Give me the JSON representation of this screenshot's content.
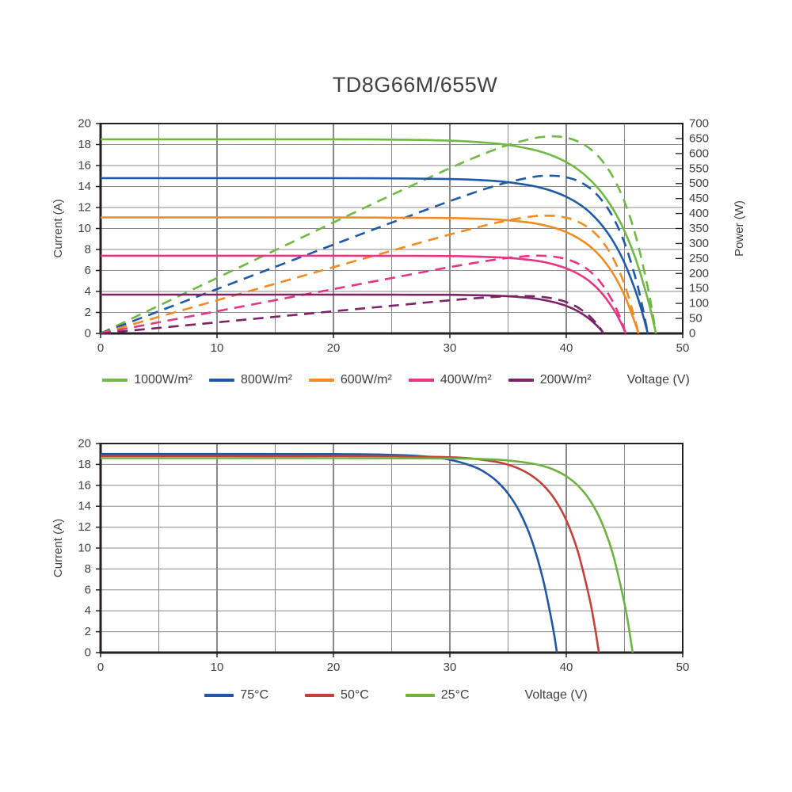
{
  "page": {
    "title": "TD8G66M/655W",
    "background": "#ffffff",
    "text_color": "#3f4042",
    "axis_color": "#231f20",
    "grid_minor_color": "#8a8a8a",
    "grid_major_color": "#4a4a4a"
  },
  "chart_data": [
    {
      "type": "line",
      "id": "irradiance",
      "description": "I-V curves (solid, left axis) and P-V curves (dashed, right axis) at five irradiance levels",
      "xlabel": "Voltage (V)",
      "ylabel": "Current (A)",
      "ylabel_right": "Power (W)",
      "x_axis": {
        "min": 0,
        "max": 50,
        "label_step": 10,
        "grid_step": 5
      },
      "y_axis": {
        "min": 0,
        "max": 20,
        "label_step": 2,
        "grid_step": 2
      },
      "y_axis_right": {
        "min": 0,
        "max": 700,
        "label_step": 50
      },
      "grid": true,
      "legend_position": "bottom",
      "power_curve_style": "dashed",
      "series": [
        {
          "name": "1000W/m²",
          "color": "#6fb944",
          "isc_a": 18.5,
          "voc_v": 47.7,
          "pmax_w": 655,
          "iv_points": [
            [
              0,
              18.5
            ],
            [
              10,
              18.5
            ],
            [
              20,
              18.5
            ],
            [
              25,
              18.47
            ],
            [
              30,
              18.37
            ],
            [
              33,
              18.19
            ],
            [
              35,
              17.96
            ],
            [
              37,
              17.55
            ],
            [
              38,
              17.25
            ],
            [
              39,
              16.85
            ],
            [
              40,
              16.32
            ],
            [
              41,
              15.62
            ],
            [
              42,
              14.69
            ],
            [
              43,
              13.48
            ],
            [
              44,
              11.88
            ],
            [
              45,
              9.76
            ],
            [
              46,
              6.97
            ],
            [
              47,
              3.27
            ],
            [
              47.4,
              1.48
            ],
            [
              47.7,
              0
            ]
          ]
        },
        {
          "name": "800W/m²",
          "color": "#1f5aa9",
          "isc_a": 14.8,
          "voc_v": 47.0,
          "pmax_w": 524,
          "iv_points": [
            [
              0,
              14.8
            ],
            [
              10,
              14.8
            ],
            [
              20,
              14.8
            ],
            [
              25,
              14.78
            ],
            [
              30,
              14.71
            ],
            [
              33,
              14.59
            ],
            [
              35,
              14.41
            ],
            [
              37,
              14.08
            ],
            [
              38,
              13.83
            ],
            [
              39,
              13.48
            ],
            [
              40,
              13.02
            ],
            [
              41,
              12.4
            ],
            [
              42,
              11.56
            ],
            [
              43,
              10.39
            ],
            [
              44,
              8.83
            ],
            [
              45,
              6.72
            ],
            [
              46,
              3.87
            ],
            [
              46.6,
              1.69
            ],
            [
              47,
              0
            ]
          ]
        },
        {
          "name": "600W/m²",
          "color": "#f08c21",
          "isc_a": 11.05,
          "voc_v": 46.2,
          "pmax_w": 393,
          "iv_points": [
            [
              0,
              11.05
            ],
            [
              10,
              11.05
            ],
            [
              20,
              11.05
            ],
            [
              25,
              11.03
            ],
            [
              30,
              11.0
            ],
            [
              33,
              10.91
            ],
            [
              35,
              10.78
            ],
            [
              37,
              10.54
            ],
            [
              38,
              10.33
            ],
            [
              39,
              10.05
            ],
            [
              40,
              9.65
            ],
            [
              41,
              9.09
            ],
            [
              42,
              8.33
            ],
            [
              43,
              7.25
            ],
            [
              44,
              5.74
            ],
            [
              45,
              3.64
            ],
            [
              45.8,
              1.32
            ],
            [
              46.2,
              0
            ]
          ]
        },
        {
          "name": "400W/m²",
          "color": "#e63584",
          "isc_a": 7.4,
          "voc_v": 45.1,
          "pmax_w": 262,
          "iv_points": [
            [
              0,
              7.4
            ],
            [
              10,
              7.4
            ],
            [
              20,
              7.4
            ],
            [
              25,
              7.39
            ],
            [
              30,
              7.37
            ],
            [
              33,
              7.3
            ],
            [
              35,
              7.2
            ],
            [
              37,
              6.99
            ],
            [
              38,
              6.82
            ],
            [
              39,
              6.56
            ],
            [
              40,
              6.2
            ],
            [
              41,
              5.69
            ],
            [
              42,
              4.96
            ],
            [
              43,
              3.9
            ],
            [
              44,
              2.4
            ],
            [
              44.7,
              1.02
            ],
            [
              45.1,
              0
            ]
          ]
        },
        {
          "name": "200W/m²",
          "color": "#7c2365",
          "isc_a": 3.7,
          "voc_v": 43.2,
          "pmax_w": 131,
          "iv_points": [
            [
              0,
              3.7
            ],
            [
              10,
              3.7
            ],
            [
              20,
              3.7
            ],
            [
              25,
              3.69
            ],
            [
              30,
              3.68
            ],
            [
              33,
              3.63
            ],
            [
              35,
              3.54
            ],
            [
              37,
              3.36
            ],
            [
              38,
              3.2
            ],
            [
              39,
              2.96
            ],
            [
              40,
              2.62
            ],
            [
              41,
              2.11
            ],
            [
              42,
              1.37
            ],
            [
              42.8,
              0.55
            ],
            [
              43.2,
              0
            ]
          ]
        }
      ]
    },
    {
      "type": "line",
      "id": "temperature",
      "description": "I-V curves at three cell temperatures",
      "xlabel": "Voltage (V)",
      "ylabel": "Current (A)",
      "x_axis": {
        "min": 0,
        "max": 50,
        "label_step": 10,
        "grid_step": 5
      },
      "y_axis": {
        "min": 0,
        "max": 20,
        "label_step": 2,
        "grid_step": 2
      },
      "grid": true,
      "legend_position": "bottom",
      "series": [
        {
          "name": "75°C",
          "color": "#2257a6",
          "isc_a": 19.0,
          "voc_v": 39.2,
          "iv_points": [
            [
              0,
              19.0
            ],
            [
              10,
              19.0
            ],
            [
              20,
              18.99
            ],
            [
              25,
              18.92
            ],
            [
              28,
              18.75
            ],
            [
              30,
              18.45
            ],
            [
              32,
              17.81
            ],
            [
              33,
              17.25
            ],
            [
              34,
              16.43
            ],
            [
              35,
              15.22
            ],
            [
              36,
              13.45
            ],
            [
              37,
              10.85
            ],
            [
              38,
              7.02
            ],
            [
              38.8,
              2.71
            ],
            [
              39.2,
              0
            ]
          ]
        },
        {
          "name": "50°C",
          "color": "#c2423a",
          "isc_a": 18.8,
          "voc_v": 42.8,
          "iv_points": [
            [
              0,
              18.8
            ],
            [
              10,
              18.8
            ],
            [
              20,
              18.8
            ],
            [
              25,
              18.79
            ],
            [
              30,
              18.69
            ],
            [
              32,
              18.55
            ],
            [
              34,
              18.24
            ],
            [
              35,
              17.97
            ],
            [
              36,
              17.56
            ],
            [
              37,
              16.95
            ],
            [
              38,
              16.04
            ],
            [
              39,
              14.69
            ],
            [
              40,
              12.67
            ],
            [
              41,
              9.65
            ],
            [
              42,
              5.15
            ],
            [
              42.5,
              2.13
            ],
            [
              42.8,
              0
            ]
          ]
        },
        {
          "name": "25°C",
          "color": "#6fb244",
          "isc_a": 18.6,
          "voc_v": 45.7,
          "iv_points": [
            [
              0,
              18.6
            ],
            [
              10,
              18.6
            ],
            [
              20,
              18.6
            ],
            [
              30,
              18.57
            ],
            [
              33,
              18.51
            ],
            [
              35,
              18.38
            ],
            [
              37,
              18.1
            ],
            [
              38,
              17.85
            ],
            [
              39,
              17.46
            ],
            [
              40,
              16.87
            ],
            [
              41,
              15.98
            ],
            [
              42,
              14.63
            ],
            [
              43,
              12.56
            ],
            [
              44,
              9.44
            ],
            [
              45,
              4.69
            ],
            [
              45.4,
              2.19
            ],
            [
              45.7,
              0
            ]
          ]
        }
      ]
    }
  ]
}
